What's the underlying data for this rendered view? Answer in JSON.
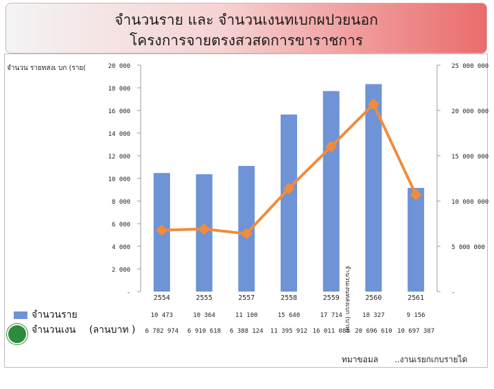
{
  "header": {
    "title_line1": "จำนวนราย และ จำนวนเงนทเบกผปวยนอก",
    "title_line2": "โครงการจายตรงสวสดการขาราชการ"
  },
  "labels": {
    "left_axis": "จำนวน รายทสงเ บก (ราย(",
    "right_axis": "จำนวนเงนทสงเบก (บาท)",
    "source_label": "ทมาขอมล",
    "source_value": "..งานเรยกเกบรายได"
  },
  "colors": {
    "bar": "#6e93d6",
    "line": "#f08c3c",
    "title_gradient_end": "#ea6c6c",
    "logo": "#2e8b3a"
  },
  "chart_data": {
    "type": "bar",
    "categories": [
      "2554",
      "2555",
      "2557",
      "2558",
      "2559",
      "2560",
      "2561"
    ],
    "series": [
      {
        "name": "จำนวนราย",
        "type": "bar",
        "axis": "left",
        "values": [
          10473,
          10364,
          11100,
          15640,
          17714,
          18327,
          9156
        ],
        "labels": [
          "10 473",
          "10 364",
          "11 100",
          "15 640",
          "17 714",
          "18 327",
          "9 156"
        ]
      },
      {
        "name": "จำนวนเงน",
        "type": "line",
        "axis": "right",
        "values": [
          6782974,
          6910618,
          6388124,
          11395912,
          16011088,
          20696610,
          10697387
        ],
        "labels": [
          "6 782 974",
          "6 910 618",
          "6 388 124",
          "11 395 912",
          "16 011 088",
          "20 696 610",
          "10 697 387"
        ]
      }
    ],
    "ylim_left": [
      0,
      20000
    ],
    "ylim_right": [
      0,
      25000000
    ],
    "y_ticks_left": [
      "-",
      "2 000",
      "4 000",
      "6 000",
      "8 000",
      "10 000",
      "12 000",
      "14 000",
      "16 000",
      "18 000",
      "20 000"
    ],
    "y_ticks_right": [
      "-",
      "5 000 000",
      "10 000 000",
      "15 000 000",
      "20 000 000",
      "25 000 000"
    ],
    "legend": {
      "bar_label": "จำนวนราย",
      "line_label": "จำนวนเงน",
      "unit_label": "(ลานบาท )"
    }
  }
}
